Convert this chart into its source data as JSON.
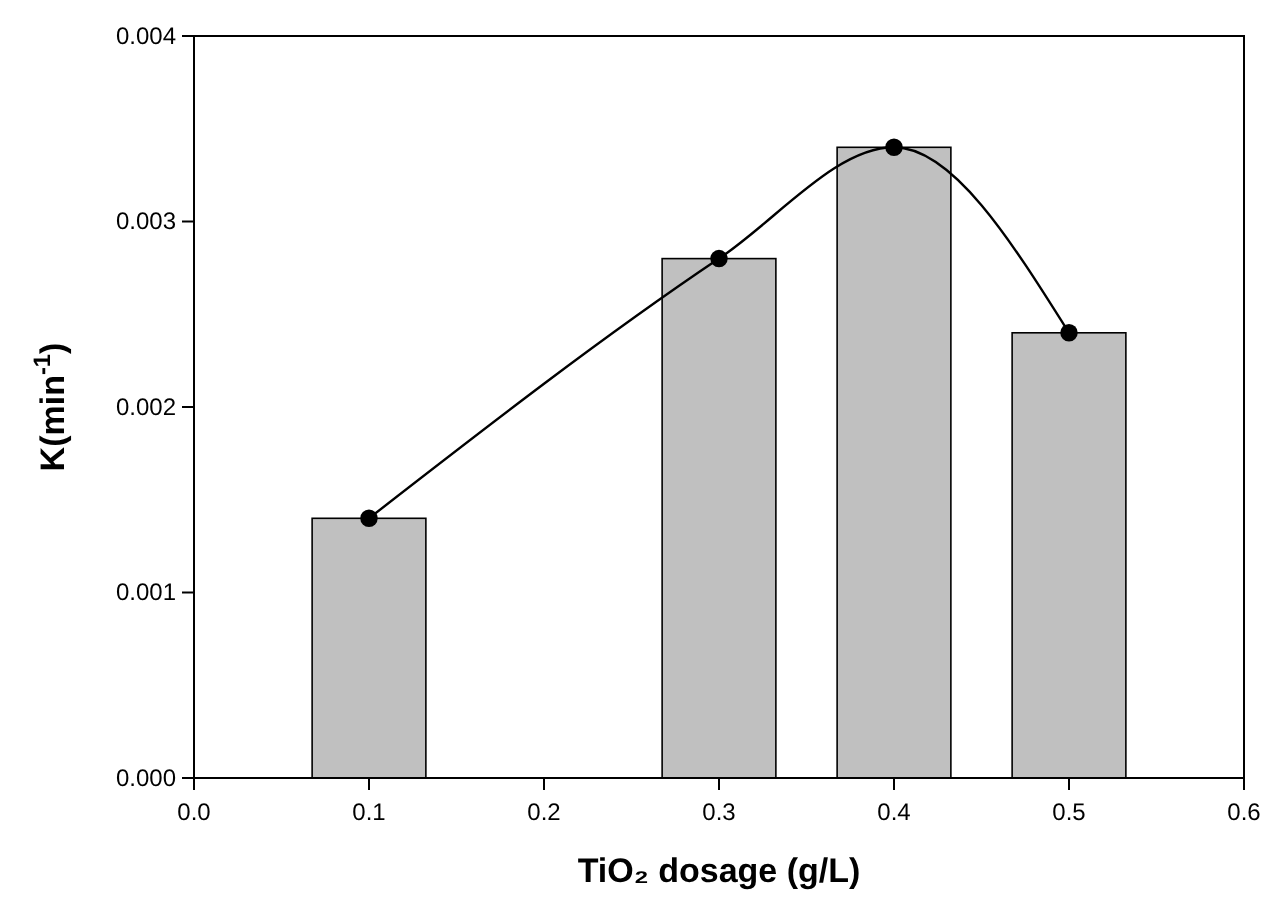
{
  "chart_data": {
    "type": "bar",
    "xlabel": "TiO₂ dosage (g/L)",
    "ylabel": "K(min$^{-1}$)",
    "x": [
      0.1,
      0.3,
      0.4,
      0.5
    ],
    "series": [
      {
        "color": "#c0c0c0",
        "values": [
          0.0014,
          0.0028,
          0.0034,
          0.0024
        ]
      },
      {
        "type": "line",
        "color": "#000000",
        "values": [
          0.0014,
          0.0028,
          0.0034,
          0.0024
        ],
        "marker": "circle",
        "line_style": "solid"
      }
    ],
    "xlim": [
      0,
      0.6
    ],
    "ylim": [
      0,
      0.004
    ],
    "xticks": [
      {
        "value": 0,
        "label": "0.0"
      },
      {
        "value": 0.1,
        "label": "0.1"
      },
      {
        "value": 0.2,
        "label": "0.2"
      },
      {
        "value": 0.3,
        "label": "0.3"
      },
      {
        "value": 0.4,
        "label": "0.4"
      },
      {
        "value": 0.5,
        "label": "0.5"
      },
      {
        "value": 0.6,
        "label": "0.6"
      }
    ],
    "yticks": [
      {
        "value": 0,
        "label": "0.000"
      },
      {
        "value": 0.001,
        "label": "0.001"
      },
      {
        "value": 0.002,
        "label": "0.002"
      },
      {
        "value": 0.003,
        "label": "0.003"
      },
      {
        "value": 0.004,
        "label": "0.004"
      }
    ],
    "grid": false
  }
}
